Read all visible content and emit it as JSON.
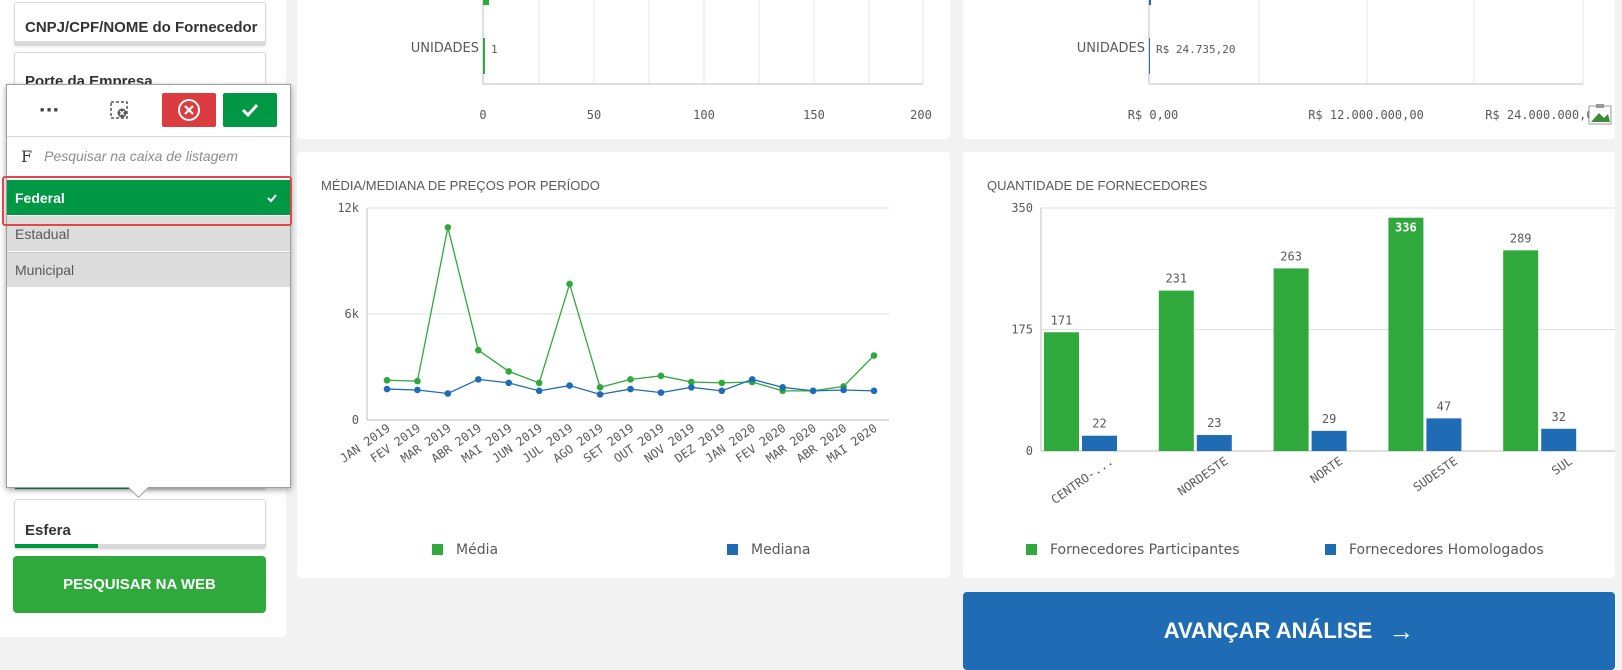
{
  "sidebar": {
    "filter_supplier": "CNPJ/CPF/NOME do Fornecedor",
    "filter_size": "Porte da Empresa",
    "filter_sphere": "Esfera",
    "search_web": "PESQUISAR NA WEB"
  },
  "popup": {
    "more_glyph": "···",
    "search_prefix": "F",
    "search_placeholder": "Pesquisar na caixa de listagem",
    "options": [
      {
        "label": "Federal",
        "state": "selected"
      },
      {
        "label": "Estadual",
        "state": "alternative"
      },
      {
        "label": "Municipal",
        "state": "alternative"
      }
    ]
  },
  "top_left_chart": {
    "category": "UNIDADES",
    "value_label": "1",
    "ticks": [
      "0",
      "50",
      "100",
      "150",
      "200"
    ]
  },
  "top_right_chart": {
    "category": "UNIDADES",
    "value_label": "R$ 24.735,20",
    "ticks": [
      "R$ 0,00",
      "R$ 12.000.000,00",
      "R$ 24.000.000,00"
    ]
  },
  "chart_data": [
    {
      "type": "line",
      "title": "MÉDIA/MEDIANA DE PREÇOS POR PERÍODO",
      "x": [
        "JAN 2019",
        "FEV 2019",
        "MAR 2019",
        "ABR 2019",
        "MAI 2019",
        "JUN 2019",
        "JUL 2019",
        "AGO 2019",
        "SET 2019",
        "OUT 2019",
        "NOV 2019",
        "DEZ 2019",
        "JAN 2020",
        "FEV 2020",
        "MAR 2020",
        "ABR 2020",
        "MAI 2020"
      ],
      "y_ticks": [
        "12k",
        "6k",
        "0"
      ],
      "ylim": [
        0,
        12000
      ],
      "series": [
        {
          "name": "Média",
          "color": "#2fa83c",
          "values": [
            2250,
            2200,
            10900,
            3950,
            2750,
            2100,
            7700,
            1850,
            2300,
            2500,
            2150,
            2100,
            2150,
            1650,
            1650,
            1900,
            3650
          ]
        },
        {
          "name": "Mediana",
          "color": "#1f6cb5",
          "values": [
            1750,
            1700,
            1500,
            2300,
            2100,
            1650,
            1950,
            1450,
            1750,
            1550,
            1850,
            1650,
            2300,
            1850,
            1650,
            1700,
            1650
          ]
        }
      ],
      "legend": "bottom"
    },
    {
      "type": "bar",
      "title": "QUANTIDADE DE FORNECEDORES",
      "categories": [
        "CENTRO-...",
        "NORDESTE",
        "NORTE",
        "SUDESTE",
        "SUL"
      ],
      "y_ticks": [
        "350",
        "175",
        "0"
      ],
      "ylim": [
        0,
        350
      ],
      "series": [
        {
          "name": "Fornecedores Participantes",
          "color": "#2fa83c",
          "values": [
            171,
            231,
            263,
            336,
            289
          ]
        },
        {
          "name": "Fornecedores Homologados",
          "color": "#1f6cb5",
          "values": [
            22,
            23,
            29,
            47,
            32
          ]
        }
      ],
      "legend": "bottom"
    }
  ],
  "avancar": {
    "label": "AVANÇAR ANÁLISE",
    "arrow": "→"
  }
}
